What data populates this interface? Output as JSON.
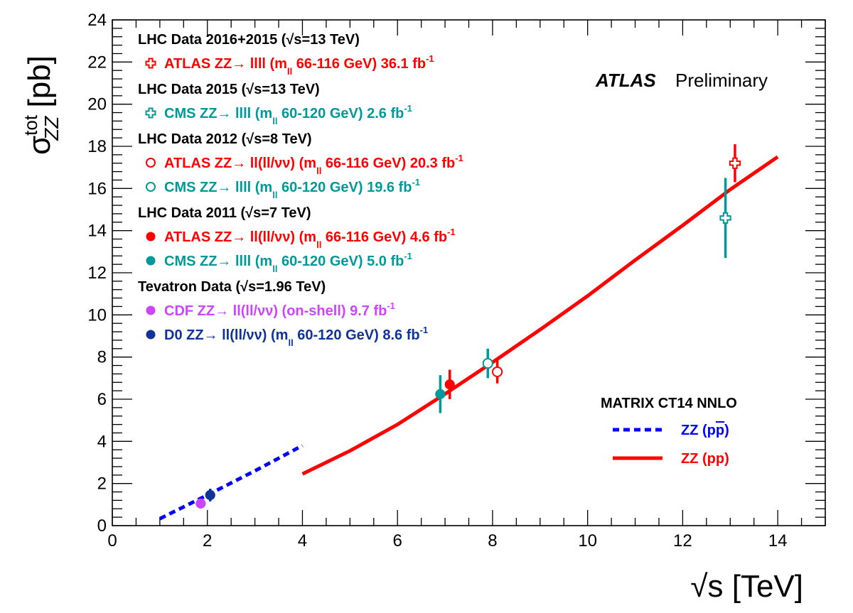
{
  "chart_data": {
    "type": "scatter",
    "xlabel": "√s [TeV]",
    "ylabel": "σ tot ZZ [pb]",
    "ylabel_main": "σ",
    "ylabel_sup": "tot",
    "ylabel_sub": "ZZ",
    "ylabel_unit": "[pb]",
    "xlim": [
      0,
      15
    ],
    "ylim": [
      0,
      24
    ],
    "x_ticks": [
      "0",
      "2",
      "4",
      "6",
      "8",
      "10",
      "12",
      "14"
    ],
    "y_ticks": [
      "0",
      "2",
      "4",
      "6",
      "8",
      "10",
      "12",
      "14",
      "16",
      "18",
      "20",
      "22",
      "24"
    ],
    "grid": false,
    "experiment": "ATLAS",
    "status": "Preliminary",
    "colors": {
      "atlas": "#ff0000",
      "cms": "#009999",
      "cdf": "#cc44ff",
      "d0": "#113399",
      "ppbar_theory": "#0000ff",
      "pp_theory": "#ff0000"
    },
    "legend_groups": [
      {
        "heading": "LHC Data 2016+2015 (√s=13 TeV)",
        "entries": [
          {
            "label": "ATLAS ZZ→ llll (m",
            "sub": "ll",
            "label2": " 66-116 GeV) 36.1 fb",
            "sup": "-1",
            "color": "#ff0000",
            "marker": "open-cross"
          }
        ]
      },
      {
        "heading": "LHC Data 2015 (√s=13 TeV)",
        "entries": [
          {
            "label": "CMS ZZ→ llll (m",
            "sub": "ll",
            "label2": " 60-120 GeV) 2.6 fb",
            "sup": "-1",
            "color": "#009999",
            "marker": "open-cross"
          }
        ]
      },
      {
        "heading": "LHC Data 2012 (√s=8 TeV)",
        "entries": [
          {
            "label": "ATLAS ZZ→ ll(ll/νν) (m",
            "sub": "ll",
            "label2": " 66-116 GeV) 20.3 fb",
            "sup": "-1",
            "color": "#ff0000",
            "marker": "open-circle"
          },
          {
            "label": "CMS ZZ→ llll (m",
            "sub": "ll",
            "label2": " 60-120 GeV) 19.6 fb",
            "sup": "-1",
            "color": "#009999",
            "marker": "open-circle"
          }
        ]
      },
      {
        "heading": "LHC Data 2011 (√s=7 TeV)",
        "entries": [
          {
            "label": "ATLAS ZZ→ ll(ll/νν) (m",
            "sub": "ll",
            "label2": " 66-116 GeV) 4.6 fb",
            "sup": "-1",
            "color": "#ff0000",
            "marker": "filled-circle"
          },
          {
            "label": "CMS ZZ→ llll (m",
            "sub": "ll",
            "label2": " 60-120 GeV) 5.0 fb",
            "sup": "-1",
            "color": "#009999",
            "marker": "filled-circle"
          }
        ]
      },
      {
        "heading": "Tevatron Data (√s=1.96 TeV)",
        "entries": [
          {
            "label": "CDF ZZ→ ll(ll/νν) (on-shell) 9.7 fb",
            "sub": "",
            "label2": "",
            "sup": "-1",
            "color": "#cc44ff",
            "marker": "filled-circle"
          },
          {
            "label": "D0 ZZ→ ll(ll/νν) (m",
            "sub": "ll",
            "label2": " 60-120 GeV) 8.6 fb",
            "sup": "-1",
            "color": "#113399",
            "marker": "filled-circle"
          }
        ]
      }
    ],
    "theory_legend": {
      "title": "MATRIX CT14 NNLO",
      "entries": [
        {
          "label": "ZZ (p",
          "label_bar": "p",
          "label_end": ")",
          "color": "#0000ff",
          "style": "dashed"
        },
        {
          "label": "ZZ (pp)",
          "label_bar": "",
          "label_end": "",
          "color": "#ff0000",
          "style": "solid"
        }
      ]
    },
    "points": [
      {
        "name": "CDF 1.96 TeV",
        "x": 1.86,
        "y": 1.05,
        "err": 0.2,
        "color": "#cc44ff",
        "marker": "filled-circle"
      },
      {
        "name": "D0 1.96 TeV",
        "x": 2.06,
        "y": 1.45,
        "err": 0.3,
        "color": "#113399",
        "marker": "filled-circle"
      },
      {
        "name": "CMS 7 TeV",
        "x": 6.9,
        "y": 6.24,
        "err": 0.9,
        "color": "#009999",
        "marker": "filled-circle"
      },
      {
        "name": "ATLAS 7 TeV",
        "x": 7.1,
        "y": 6.7,
        "err": 0.7,
        "color": "#ff0000",
        "marker": "filled-circle"
      },
      {
        "name": "CMS 8 TeV",
        "x": 7.9,
        "y": 7.7,
        "err": 0.7,
        "color": "#009999",
        "marker": "open-circle"
      },
      {
        "name": "ATLAS 8 TeV",
        "x": 8.1,
        "y": 7.3,
        "err": 0.55,
        "color": "#ff0000",
        "marker": "open-circle"
      },
      {
        "name": "CMS 13 TeV",
        "x": 12.9,
        "y": 14.6,
        "err": 1.9,
        "color": "#009999",
        "marker": "open-cross"
      },
      {
        "name": "ATLAS 13 TeV",
        "x": 13.1,
        "y": 17.2,
        "err": 0.9,
        "color": "#ff0000",
        "marker": "open-cross"
      }
    ],
    "series": [
      {
        "name": "ZZ (pp̅)",
        "style": "dashed",
        "color": "#0000ff",
        "x": [
          1.0,
          2.0,
          3.0,
          4.0
        ],
        "y": [
          0.33,
          1.45,
          2.6,
          3.8
        ]
      },
      {
        "name": "ZZ (pp)",
        "style": "solid",
        "color": "#ff0000",
        "x": [
          4.0,
          5.0,
          6.0,
          7.0,
          8.0,
          9.0,
          10.0,
          11.0,
          12.0,
          13.0,
          14.0
        ],
        "y": [
          2.45,
          3.55,
          4.8,
          6.25,
          7.75,
          9.3,
          10.9,
          12.6,
          14.25,
          15.95,
          17.5
        ]
      }
    ]
  }
}
